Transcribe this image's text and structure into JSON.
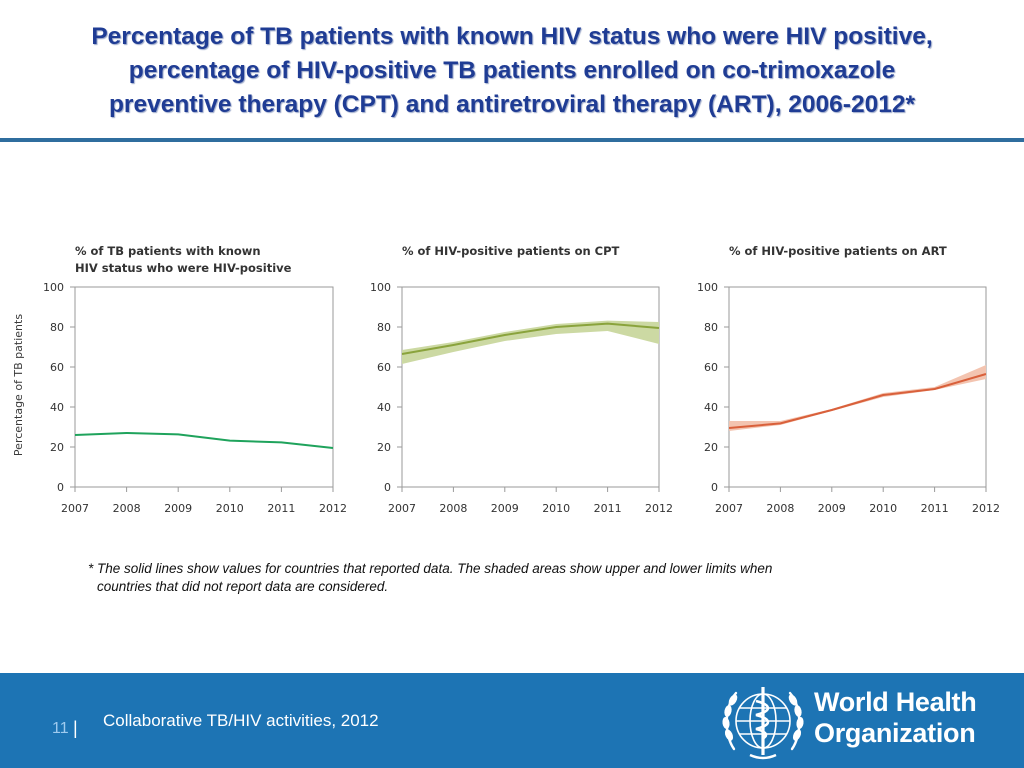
{
  "slide": {
    "title_lines": [
      "Percentage of TB patients with known HIV status who were HIV positive,",
      "percentage of HIV-positive TB patients enrolled on co-trimoxazole",
      "preventive therapy (CPT) and antiretroviral therapy (ART), 2006-2012*"
    ],
    "y_axis_label": "Percentage of TB patients",
    "footnote_lines": [
      "* The solid lines show values for countries that reported data. The shaded areas show upper and lower limits when",
      "countries that did not report data are considered."
    ],
    "footer": {
      "page_number": "11",
      "separator": "|",
      "text": "Collaborative TB/HIV activities, 2012",
      "logo_lines": [
        "World Health",
        "Organization"
      ]
    }
  },
  "chart_data": [
    {
      "type": "line",
      "title_lines": [
        "% of TB patients with known",
        "HIV status who were HIV-positive"
      ],
      "x": [
        2007,
        2008,
        2009,
        2010,
        2011,
        2012
      ],
      "x_ticks": [
        "2007",
        "2008",
        "2009",
        "2010",
        "2011",
        "2012"
      ],
      "y_ticks": [
        "0",
        "20",
        "40",
        "60",
        "80",
        "100"
      ],
      "ylim": [
        0,
        100
      ],
      "ylabel": "Percentage of TB patients",
      "series": [
        {
          "name": "HIV-positive",
          "values": [
            26,
            27,
            26.3,
            23.2,
            22.3,
            19.5
          ]
        }
      ],
      "band": null,
      "line_color": "#1fa35c",
      "band_color": "#bfe2cb"
    },
    {
      "type": "area",
      "title_lines": [
        "% of HIV-positive patients on CPT"
      ],
      "x": [
        2007,
        2008,
        2009,
        2010,
        2011,
        2012
      ],
      "x_ticks": [
        "2007",
        "2008",
        "2009",
        "2010",
        "2011",
        "2012"
      ],
      "y_ticks": [
        "0",
        "20",
        "40",
        "60",
        "80",
        "100"
      ],
      "ylim": [
        0,
        100
      ],
      "series": [
        {
          "name": "CPT",
          "values": [
            66.5,
            71,
            76,
            80,
            81.7,
            79.5
          ]
        }
      ],
      "band": {
        "upper": [
          68.5,
          72.5,
          77.5,
          81.5,
          83.2,
          82.5
        ],
        "lower": [
          61.5,
          67.5,
          73,
          76.5,
          78,
          71.5
        ]
      },
      "line_color": "#8aa33c",
      "band_color": "#ccd9a3"
    },
    {
      "type": "area",
      "title_lines": [
        "% of HIV-positive patients on ART"
      ],
      "x": [
        2007,
        2008,
        2009,
        2010,
        2011,
        2012
      ],
      "x_ticks": [
        "2007",
        "2008",
        "2009",
        "2010",
        "2011",
        "2012"
      ],
      "y_ticks": [
        "0",
        "20",
        "40",
        "60",
        "80",
        "100"
      ],
      "ylim": [
        0,
        100
      ],
      "series": [
        {
          "name": "ART",
          "values": [
            29.5,
            31.8,
            38.5,
            46,
            49,
            56.5
          ]
        }
      ],
      "band": {
        "upper": [
          33,
          33,
          39,
          47,
          50,
          61
        ],
        "lower": [
          28,
          31,
          38,
          45,
          48.5,
          54
        ]
      },
      "line_color": "#d9603b",
      "band_color": "#f3c4b0"
    }
  ]
}
